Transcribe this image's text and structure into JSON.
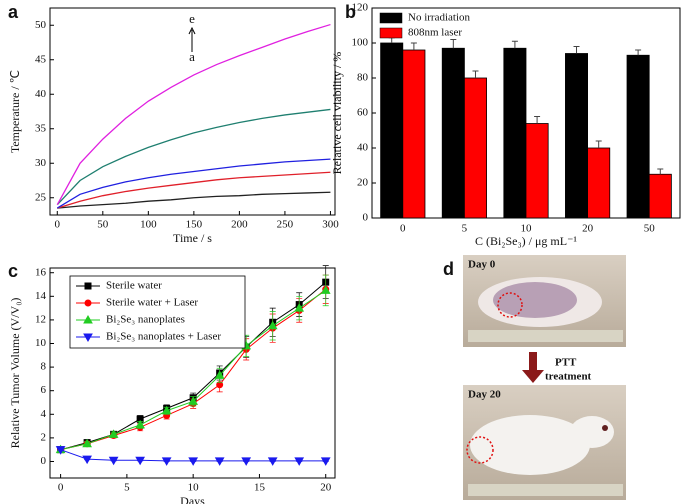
{
  "chart_data": [
    {
      "type": "line",
      "panel_label": "a",
      "xlabel": "Time / s",
      "ylabel": "Temperature / ℃",
      "annotations": [
        "e",
        "a"
      ],
      "x": [
        0,
        25,
        50,
        75,
        100,
        125,
        150,
        175,
        200,
        225,
        250,
        275,
        300
      ],
      "xlim": [
        -8,
        305
      ],
      "xticks": [
        0,
        50,
        100,
        150,
        200,
        250,
        300
      ],
      "ylim": [
        22.5,
        52.5
      ],
      "yticks": [
        25,
        30,
        35,
        40,
        45,
        50
      ],
      "series": [
        {
          "color": "#222222",
          "values": [
            23.5,
            23.8,
            24.0,
            24.2,
            24.5,
            24.7,
            25.0,
            25.2,
            25.3,
            25.5,
            25.6,
            25.7,
            25.8
          ]
        },
        {
          "color": "#e0202a",
          "values": [
            23.5,
            24.5,
            25.3,
            25.9,
            26.4,
            26.8,
            27.2,
            27.6,
            27.9,
            28.1,
            28.3,
            28.5,
            28.7
          ]
        },
        {
          "color": "#2020e0",
          "values": [
            23.5,
            25.5,
            26.5,
            27.3,
            27.9,
            28.4,
            28.8,
            29.2,
            29.6,
            29.9,
            30.2,
            30.4,
            30.6
          ]
        },
        {
          "color": "#1f7f70",
          "values": [
            24.0,
            27.5,
            29.5,
            31.0,
            32.3,
            33.4,
            34.4,
            35.2,
            35.9,
            36.5,
            37.0,
            37.4,
            37.8
          ]
        },
        {
          "color": "#e020e0",
          "values": [
            24.0,
            30.0,
            33.5,
            36.5,
            39.0,
            41.0,
            42.8,
            44.3,
            45.6,
            46.8,
            48.0,
            49.1,
            50.1
          ]
        }
      ]
    },
    {
      "type": "bar",
      "panel_label": "b",
      "xlabel": "C (Bi₂Se₃) / μg mL⁻¹",
      "ylabel": "Relative cell viability / %",
      "categories": [
        "0",
        "5",
        "10",
        "20",
        "50"
      ],
      "ylim": [
        0,
        120
      ],
      "yticks": [
        0,
        20,
        40,
        60,
        80,
        100,
        120
      ],
      "series": [
        {
          "name": "No irradiation",
          "color": "#000000",
          "values": [
            100,
            97,
            97,
            94,
            93
          ],
          "errors": [
            3,
            5,
            4,
            4,
            3
          ]
        },
        {
          "name": "808nm laser",
          "color": "#ff0000",
          "values": [
            96,
            80,
            54,
            40,
            25
          ],
          "errors": [
            4,
            4,
            4,
            4,
            3
          ]
        }
      ]
    },
    {
      "type": "line",
      "panel_label": "c",
      "xlabel": "Days",
      "ylabel": "Relative Tumor Volume (V/V₀)",
      "x": [
        0,
        2,
        4,
        6,
        8,
        10,
        12,
        14,
        16,
        18,
        20
      ],
      "xlim": [
        -0.8,
        20.7
      ],
      "xticks": [
        0,
        5,
        10,
        15,
        20
      ],
      "ylim": [
        -1.4,
        16.4
      ],
      "yticks": [
        0,
        2,
        4,
        6,
        8,
        10,
        12,
        14,
        16
      ],
      "series": [
        {
          "name": "Sterile water",
          "color": "#000000",
          "marker": "square",
          "values": [
            1,
            1.6,
            2.3,
            3.6,
            4.5,
            5.4,
            7.5,
            9.7,
            11.8,
            13.3,
            15.2
          ],
          "errors": [
            0.1,
            0.2,
            0.2,
            0.3,
            0.3,
            0.4,
            0.6,
            0.9,
            1.2,
            1.0,
            1.4
          ]
        },
        {
          "name": "Sterile water + Laser",
          "color": "#ff0000",
          "marker": "circle",
          "values": [
            1,
            1.5,
            2.2,
            2.9,
            3.9,
            4.9,
            6.5,
            9.5,
            11.3,
            12.8,
            14.6
          ],
          "errors": [
            0.1,
            0.2,
            0.2,
            0.3,
            0.3,
            0.4,
            0.6,
            0.9,
            1.2,
            1.0,
            1.2
          ]
        },
        {
          "name": "Bi₂Se₃ nanoplates",
          "color": "#22cc22",
          "marker": "triangle",
          "values": [
            1,
            1.5,
            2.3,
            3.1,
            4.3,
            5.1,
            7.3,
            9.8,
            11.5,
            13.0,
            14.5
          ],
          "errors": [
            0.1,
            0.2,
            0.2,
            0.3,
            0.3,
            0.4,
            0.6,
            0.9,
            1.2,
            1.0,
            1.3
          ]
        },
        {
          "name": "Bi₂Se₃ nanoplates + Laser",
          "color": "#1a1aee",
          "marker": "triangle-down",
          "values": [
            1,
            0.2,
            0.1,
            0.1,
            0.05,
            0.05,
            0.05,
            0.05,
            0.05,
            0.05,
            0.05
          ],
          "errors": [
            0.05,
            0.05,
            0.05,
            0.05,
            0.05,
            0.05,
            0.05,
            0.05,
            0.05,
            0.05,
            0.05
          ]
        }
      ]
    }
  ],
  "photo_panel": {
    "panel_label": "d",
    "top_label": "Day 0",
    "arrow_label_1": "PTT",
    "arrow_label_2": "treatment",
    "bottom_label": "Day 20"
  }
}
